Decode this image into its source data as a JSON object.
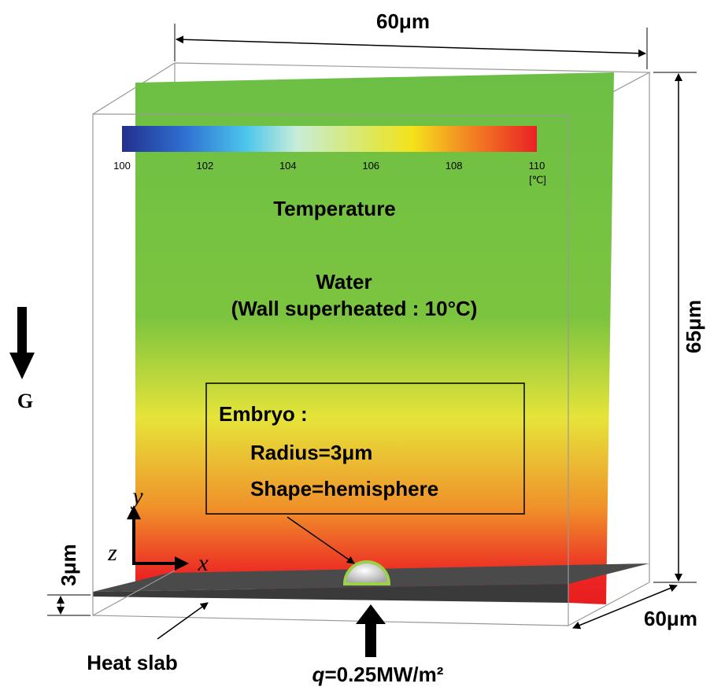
{
  "dimensions": {
    "width": "60μm",
    "height": "65μm",
    "depth": "60μm",
    "slab": "3μm"
  },
  "colorbar": {
    "ticks": [
      100,
      102,
      104,
      106,
      108,
      110
    ],
    "unit": "[℃]"
  },
  "labels": {
    "temperature": "Temperature",
    "water": "Water",
    "condition": "(Wall superheated : 10°C)",
    "gravity": "G",
    "heat_slab": "Heat slab",
    "heat_flux_symbol": "q",
    "heat_flux_value": "=0.25MW/m²"
  },
  "embryo": {
    "title": "Embryo :",
    "radius": "Radius=3μm",
    "shape": "Shape=hemisphere"
  },
  "axes": {
    "x": "x",
    "y": "y",
    "z": "z"
  }
}
